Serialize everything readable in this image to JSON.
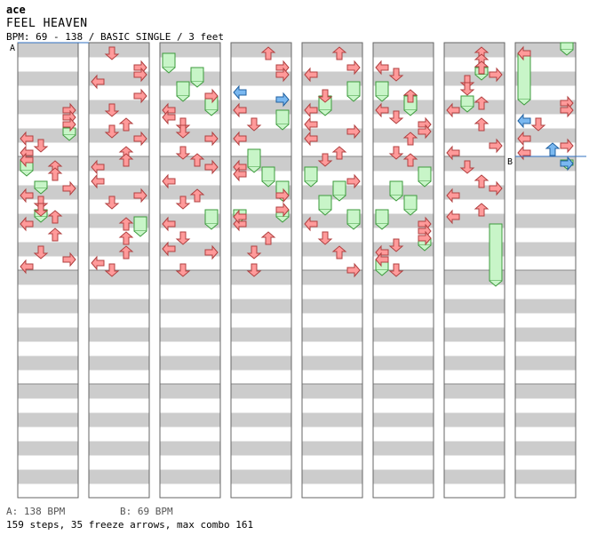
{
  "header": {
    "author": "ace",
    "title": "FEEL HEAVEN",
    "info": "BPM: 69 - 138 / BASIC SINGLE / 3 feet"
  },
  "footer": {
    "bpm_a": "A: 138 BPM",
    "bpm_b": "B: 69 BPM",
    "stats": "159 steps, 35 freeze arrows, max combo 161"
  },
  "colors": {
    "arrow": "#ff9a9a",
    "arrow_stroke": "#b04040",
    "arrow_blue": "#7ab8f0",
    "arrow_blue_stroke": "#2060a0",
    "freeze": "#c8f5c8",
    "freeze_stroke": "#3c9a3c",
    "stripe": "#cccccc",
    "bpm_line": "#3070c0"
  },
  "chart_data": {
    "type": "step-chart",
    "columns": 8,
    "lanes": [
      "left",
      "down",
      "up",
      "right"
    ],
    "bpm_markers": [
      {
        "label": "A",
        "column": 0,
        "beat": 0
      },
      {
        "label": "B",
        "column": 7,
        "beat": 4
      }
    ],
    "notes": [
      {
        "c": 0,
        "lane": 3,
        "beat": 4.25
      },
      {
        "c": 0,
        "lane": 3,
        "beat": 4.75
      },
      {
        "c": 0,
        "lane": 3,
        "beat": 5.25
      },
      {
        "c": 0,
        "lane": 0,
        "beat": 6.25
      },
      {
        "c": 0,
        "lane": 1,
        "beat": 6.75
      },
      {
        "c": 0,
        "lane": 0,
        "beat": 7.25
      },
      {
        "c": 0,
        "lane": 0,
        "beat": 7.75
      },
      {
        "c": 0,
        "lane": 2,
        "beat": 8.25
      },
      {
        "c": 0,
        "lane": 2,
        "beat": 8.75
      },
      {
        "c": 0,
        "lane": 3,
        "beat": 9.75
      },
      {
        "c": 0,
        "lane": 0,
        "beat": 10.25
      },
      {
        "c": 0,
        "lane": 1,
        "beat": 10.75
      },
      {
        "c": 0,
        "lane": 1,
        "beat": 11.25
      },
      {
        "c": 0,
        "lane": 2,
        "beat": 11.75
      },
      {
        "c": 0,
        "lane": 0,
        "beat": 12.25
      },
      {
        "c": 0,
        "lane": 2,
        "beat": 13.0
      },
      {
        "c": 0,
        "lane": 1,
        "beat": 14.25
      },
      {
        "c": 0,
        "lane": 3,
        "beat": 14.75
      },
      {
        "c": 0,
        "lane": 0,
        "beat": 15.25
      },
      {
        "c": 1,
        "lane": 1,
        "beat": 0.25
      },
      {
        "c": 1,
        "lane": 3,
        "beat": 1.25
      },
      {
        "c": 1,
        "lane": 3,
        "beat": 1.75
      },
      {
        "c": 1,
        "lane": 0,
        "beat": 2.25
      },
      {
        "c": 1,
        "lane": 3,
        "beat": 3.25
      },
      {
        "c": 1,
        "lane": 1,
        "beat": 4.25
      },
      {
        "c": 1,
        "lane": 2,
        "beat": 5.25
      },
      {
        "c": 1,
        "lane": 1,
        "beat": 5.75
      },
      {
        "c": 1,
        "lane": 3,
        "beat": 6.25
      },
      {
        "c": 1,
        "lane": 2,
        "beat": 7.25
      },
      {
        "c": 1,
        "lane": 2,
        "beat": 7.75
      },
      {
        "c": 1,
        "lane": 0,
        "beat": 8.25
      },
      {
        "c": 1,
        "lane": 0,
        "beat": 9.25
      },
      {
        "c": 1,
        "lane": 3,
        "beat": 10.25
      },
      {
        "c": 1,
        "lane": 1,
        "beat": 10.75
      },
      {
        "c": 1,
        "lane": 2,
        "beat": 12.25
      },
      {
        "c": 1,
        "lane": 2,
        "beat": 13.25
      },
      {
        "c": 1,
        "lane": 2,
        "beat": 14.25
      },
      {
        "c": 1,
        "lane": 0,
        "beat": 15.0
      },
      {
        "c": 1,
        "lane": 1,
        "beat": 15.5
      },
      {
        "c": 2,
        "lane": 3,
        "beat": 3.25
      },
      {
        "c": 2,
        "lane": 0,
        "beat": 4.25
      },
      {
        "c": 2,
        "lane": 0,
        "beat": 4.75
      },
      {
        "c": 2,
        "lane": 1,
        "beat": 5.25
      },
      {
        "c": 2,
        "lane": 1,
        "beat": 5.75
      },
      {
        "c": 2,
        "lane": 3,
        "beat": 6.25
      },
      {
        "c": 2,
        "lane": 1,
        "beat": 7.25
      },
      {
        "c": 2,
        "lane": 2,
        "beat": 7.75
      },
      {
        "c": 2,
        "lane": 3,
        "beat": 8.25
      },
      {
        "c": 2,
        "lane": 0,
        "beat": 9.25
      },
      {
        "c": 2,
        "lane": 2,
        "beat": 10.25
      },
      {
        "c": 2,
        "lane": 1,
        "beat": 10.75
      },
      {
        "c": 2,
        "lane": 0,
        "beat": 12.25
      },
      {
        "c": 2,
        "lane": 1,
        "beat": 13.25
      },
      {
        "c": 2,
        "lane": 0,
        "beat": 14.0
      },
      {
        "c": 2,
        "lane": 3,
        "beat": 14.25
      },
      {
        "c": 2,
        "lane": 1,
        "beat": 15.5
      },
      {
        "c": 3,
        "lane": 2,
        "beat": 0.25
      },
      {
        "c": 3,
        "lane": 3,
        "beat": 1.25
      },
      {
        "c": 3,
        "lane": 3,
        "beat": 1.75
      },
      {
        "c": 3,
        "lane": 0,
        "beat": 6.25
      },
      {
        "c": 3,
        "lane": 1,
        "beat": 5.25
      },
      {
        "c": 3,
        "lane": 0,
        "beat": 4.25
      },
      {
        "c": 3,
        "lane": 0,
        "beat": 8.25
      },
      {
        "c": 3,
        "lane": 0,
        "beat": 8.75
      },
      {
        "c": 3,
        "lane": 3,
        "beat": 10.25
      },
      {
        "c": 3,
        "lane": 0,
        "beat": 12.25
      },
      {
        "c": 3,
        "lane": 1,
        "beat": 14.25
      },
      {
        "c": 3,
        "lane": 2,
        "beat": 13.25
      },
      {
        "c": 3,
        "lane": 1,
        "beat": 15.5
      },
      {
        "c": 3,
        "lane": 0,
        "beat": 11.75
      },
      {
        "c": 3,
        "lane": 3,
        "beat": 11.25
      },
      {
        "c": 4,
        "lane": 2,
        "beat": 0.25
      },
      {
        "c": 4,
        "lane": 3,
        "beat": 1.25
      },
      {
        "c": 4,
        "lane": 0,
        "beat": 1.75
      },
      {
        "c": 4,
        "lane": 1,
        "beat": 3.25
      },
      {
        "c": 4,
        "lane": 0,
        "beat": 4.25
      },
      {
        "c": 4,
        "lane": 0,
        "beat": 5.25
      },
      {
        "c": 4,
        "lane": 3,
        "beat": 5.75
      },
      {
        "c": 4,
        "lane": 0,
        "beat": 6.25
      },
      {
        "c": 4,
        "lane": 2,
        "beat": 7.25
      },
      {
        "c": 4,
        "lane": 1,
        "beat": 7.75
      },
      {
        "c": 4,
        "lane": 3,
        "beat": 9.25
      },
      {
        "c": 4,
        "lane": 0,
        "beat": 12.25
      },
      {
        "c": 4,
        "lane": 1,
        "beat": 13.25
      },
      {
        "c": 4,
        "lane": 2,
        "beat": 14.25
      },
      {
        "c": 4,
        "lane": 3,
        "beat": 15.5
      },
      {
        "c": 5,
        "lane": 0,
        "beat": 1.25
      },
      {
        "c": 5,
        "lane": 1,
        "beat": 1.75
      },
      {
        "c": 5,
        "lane": 2,
        "beat": 3.25
      },
      {
        "c": 5,
        "lane": 0,
        "beat": 4.25
      },
      {
        "c": 5,
        "lane": 1,
        "beat": 4.75
      },
      {
        "c": 5,
        "lane": 3,
        "beat": 5.25
      },
      {
        "c": 5,
        "lane": 3,
        "beat": 5.75
      },
      {
        "c": 5,
        "lane": 2,
        "beat": 6.25
      },
      {
        "c": 5,
        "lane": 1,
        "beat": 7.25
      },
      {
        "c": 5,
        "lane": 2,
        "beat": 7.75
      },
      {
        "c": 5,
        "lane": 3,
        "beat": 12.25
      },
      {
        "c": 5,
        "lane": 3,
        "beat": 12.75
      },
      {
        "c": 5,
        "lane": 3,
        "beat": 13.25
      },
      {
        "c": 5,
        "lane": 1,
        "beat": 13.75
      },
      {
        "c": 5,
        "lane": 0,
        "beat": 14.25
      },
      {
        "c": 5,
        "lane": 0,
        "beat": 14.75
      },
      {
        "c": 5,
        "lane": 1,
        "beat": 15.5
      },
      {
        "c": 6,
        "lane": 2,
        "beat": 0.25
      },
      {
        "c": 6,
        "lane": 2,
        "beat": 0.75
      },
      {
        "c": 6,
        "lane": 2,
        "beat": 1.25
      },
      {
        "c": 6,
        "lane": 3,
        "beat": 1.75
      },
      {
        "c": 6,
        "lane": 1,
        "beat": 2.25
      },
      {
        "c": 6,
        "lane": 1,
        "beat": 2.75
      },
      {
        "c": 6,
        "lane": 2,
        "beat": 3.75
      },
      {
        "c": 6,
        "lane": 0,
        "beat": 4.25
      },
      {
        "c": 6,
        "lane": 2,
        "beat": 5.25
      },
      {
        "c": 6,
        "lane": 3,
        "beat": 6.75
      },
      {
        "c": 6,
        "lane": 0,
        "beat": 7.25
      },
      {
        "c": 6,
        "lane": 1,
        "beat": 8.25
      },
      {
        "c": 6,
        "lane": 2,
        "beat": 9.25
      },
      {
        "c": 6,
        "lane": 3,
        "beat": 9.75
      },
      {
        "c": 6,
        "lane": 0,
        "beat": 10.25
      },
      {
        "c": 6,
        "lane": 2,
        "beat": 11.25
      },
      {
        "c": 6,
        "lane": 0,
        "beat": 11.75
      },
      {
        "c": 7,
        "lane": 0,
        "beat": 0.25
      },
      {
        "c": 7,
        "lane": 3,
        "beat": 3.75
      },
      {
        "c": 7,
        "lane": 3,
        "beat": 4.25
      },
      {
        "c": 7,
        "lane": 1,
        "beat": 5.25
      },
      {
        "c": 7,
        "lane": 0,
        "beat": 6.25
      },
      {
        "c": 7,
        "lane": 3,
        "beat": 6.75
      },
      {
        "c": 7,
        "lane": 0,
        "beat": 7.25
      }
    ],
    "blue_notes": [
      {
        "c": 3,
        "lane": 0,
        "beat": 3.0
      },
      {
        "c": 3,
        "lane": 3,
        "beat": 3.5
      },
      {
        "c": 7,
        "lane": 0,
        "beat": 5.0
      },
      {
        "c": 7,
        "lane": 2,
        "beat": 7.0
      },
      {
        "c": 7,
        "lane": 3,
        "beat": 8.0
      }
    ],
    "freezes": [
      {
        "c": 0,
        "lane": 3,
        "start": 5.5,
        "end": 6.0
      },
      {
        "c": 0,
        "lane": 0,
        "start": 7.75,
        "end": 8.5
      },
      {
        "c": 0,
        "lane": 1,
        "start": 9.25,
        "end": 9.75
      },
      {
        "c": 0,
        "lane": 1,
        "start": 11.25,
        "end": 11.75
      },
      {
        "c": 1,
        "lane": 3,
        "start": 11.75,
        "end": 12.75
      },
      {
        "c": 2,
        "lane": 0,
        "start": 0.25,
        "end": 1.25
      },
      {
        "c": 2,
        "lane": 2,
        "start": 1.25,
        "end": 2.25
      },
      {
        "c": 2,
        "lane": 1,
        "start": 2.25,
        "end": 3.25
      },
      {
        "c": 2,
        "lane": 3,
        "start": 3.25,
        "end": 4.25
      },
      {
        "c": 2,
        "lane": 3,
        "start": 11.25,
        "end": 12.25
      },
      {
        "c": 3,
        "lane": 3,
        "start": 4.25,
        "end": 5.25
      },
      {
        "c": 3,
        "lane": 1,
        "start": 7.0,
        "end": 8.25
      },
      {
        "c": 3,
        "lane": 2,
        "start": 8.25,
        "end": 9.25
      },
      {
        "c": 3,
        "lane": 3,
        "start": 9.25,
        "end": 10.25
      },
      {
        "c": 3,
        "lane": 0,
        "start": 11.25,
        "end": 11.75
      },
      {
        "c": 3,
        "lane": 3,
        "start": 11.25,
        "end": 11.75
      },
      {
        "c": 4,
        "lane": 3,
        "start": 2.25,
        "end": 3.25
      },
      {
        "c": 4,
        "lane": 1,
        "start": 3.25,
        "end": 4.25
      },
      {
        "c": 4,
        "lane": 0,
        "start": 8.25,
        "end": 9.25
      },
      {
        "c": 4,
        "lane": 2,
        "start": 9.25,
        "end": 10.25
      },
      {
        "c": 4,
        "lane": 1,
        "start": 10.25,
        "end": 11.25
      },
      {
        "c": 4,
        "lane": 3,
        "start": 11.25,
        "end": 12.25
      },
      {
        "c": 5,
        "lane": 0,
        "start": 2.25,
        "end": 3.25
      },
      {
        "c": 5,
        "lane": 2,
        "start": 3.25,
        "end": 4.25
      },
      {
        "c": 5,
        "lane": 3,
        "start": 8.25,
        "end": 9.25
      },
      {
        "c": 5,
        "lane": 1,
        "start": 9.25,
        "end": 10.25
      },
      {
        "c": 5,
        "lane": 2,
        "start": 10.25,
        "end": 11.25
      },
      {
        "c": 5,
        "lane": 0,
        "start": 11.25,
        "end": 12.25
      },
      {
        "c": 5,
        "lane": 3,
        "start": 13.25,
        "end": 13.75
      },
      {
        "c": 5,
        "lane": 0,
        "start": 14.75,
        "end": 15.5
      },
      {
        "c": 6,
        "lane": 2,
        "start": 1.25,
        "end": 1.75
      },
      {
        "c": 6,
        "lane": 1,
        "start": 3.25,
        "end": 4.0
      },
      {
        "c": 6,
        "lane": 3,
        "start": 12.25,
        "end": 16.25
      },
      {
        "c": 7,
        "lane": 0,
        "start": 0.25,
        "end": 3.5
      },
      {
        "c": 7,
        "lane": 3,
        "start": -0.5,
        "end": 0.0
      },
      {
        "c": 7,
        "lane": 3,
        "start": 7.75,
        "end": 8.0
      }
    ]
  }
}
